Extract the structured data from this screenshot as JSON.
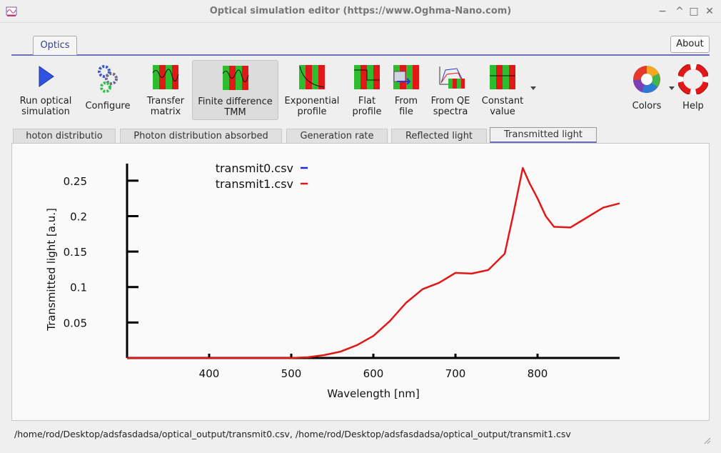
{
  "window": {
    "title": "Optical simulation editor (https://www.Oghma-Nano.com)",
    "controls": [
      "−",
      "^",
      "□",
      "✕"
    ]
  },
  "ribbon": {
    "tab": "Optics",
    "about": "About"
  },
  "toolbar": {
    "run_line1": "Run optical",
    "run_line2": "simulation",
    "configure": "Configure",
    "transfer_line1": "Transfer",
    "transfer_line2": "matrix",
    "fdtmm_line1": "Finite difference",
    "fdtmm_line2": "TMM",
    "exp_line1": "Exponential",
    "exp_line2": "profile",
    "flat_line1": "Flat",
    "flat_line2": "profile",
    "file_line1": "From",
    "file_line2": "file",
    "qe_line1": "From QE",
    "qe_line2": "spectra",
    "const_line1": "Constant",
    "const_line2": "value",
    "colors": "Colors",
    "help": "Help"
  },
  "tabs": [
    "hoton distributio",
    "Photon distribution absorbed",
    "Generation rate",
    "Reflected light",
    "Transmitted light"
  ],
  "status": "/home/rod/Desktop/adsfasdadsa/optical_output/transmit0.csv, /home/rod/Desktop/adsfasdadsa/optical_output/transmit1.csv",
  "chart_data": {
    "type": "line",
    "xlabel": "Wavelength [nm]",
    "ylabel": "Transmitted light [a.u.]",
    "xlim": [
      300,
      900
    ],
    "ylim": [
      0,
      0.27
    ],
    "xticks": [
      "400",
      "500",
      "600",
      "700",
      "800"
    ],
    "yticks": [
      "0.05",
      "0.1",
      "0.15",
      "0.2",
      "0.25"
    ],
    "legend_position": "top-left",
    "series": [
      {
        "name": "transmit0.csv",
        "color": "#1f2bd6",
        "x": [],
        "y": []
      },
      {
        "name": "transmit1.csv",
        "color": "#e01818",
        "x": [
          300,
          400,
          500,
          520,
          540,
          560,
          580,
          600,
          620,
          640,
          660,
          680,
          700,
          720,
          740,
          760,
          770,
          782,
          790,
          800,
          810,
          820,
          840,
          860,
          880,
          900
        ],
        "y": [
          0,
          0,
          0,
          0.001,
          0.004,
          0.009,
          0.018,
          0.031,
          0.052,
          0.078,
          0.097,
          0.106,
          0.12,
          0.119,
          0.124,
          0.147,
          0.2,
          0.268,
          0.247,
          0.225,
          0.2,
          0.185,
          0.184,
          0.198,
          0.212,
          0.218
        ]
      }
    ]
  }
}
